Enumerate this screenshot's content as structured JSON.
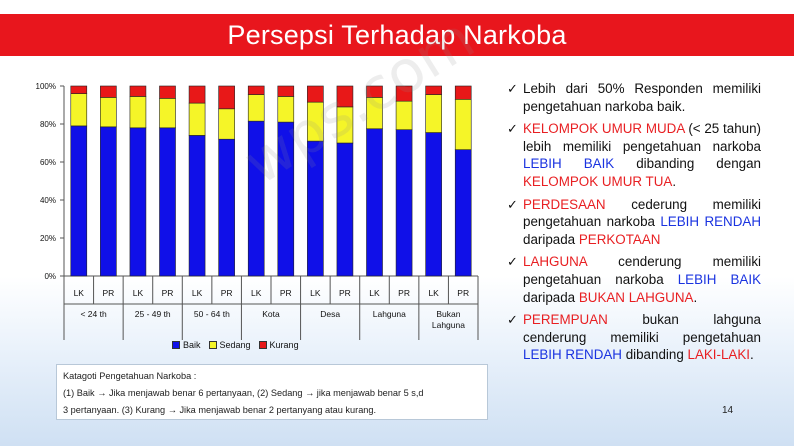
{
  "slide_title": "Persepsi Terhadap Narkoba",
  "watermark": "wps.com",
  "page_number": "14",
  "colors": {
    "baik": "#1010e8",
    "sedang": "#f5f528",
    "kurang": "#e81818",
    "title_bar": "#e8161d"
  },
  "chart_data": {
    "type": "bar",
    "stacked": true,
    "percent": true,
    "categories": [
      "LK",
      "PR",
      "LK",
      "PR",
      "LK",
      "PR",
      "LK",
      "PR",
      "LK",
      "PR",
      "LK",
      "PR",
      "LK",
      "PR"
    ],
    "groups": [
      "< 24 th",
      "25 - 49 th",
      "50 - 64 th",
      "Kota",
      "Desa",
      "Lahguna",
      "Bukan Lahguna"
    ],
    "series": [
      {
        "name": "Baik",
        "values": [
          79,
          78.5,
          78,
          78,
          74,
          72,
          81.5,
          81,
          71,
          70,
          77.5,
          77,
          75.5,
          66.5
        ]
      },
      {
        "name": "Sedang",
        "values": [
          17,
          15.5,
          16.5,
          15.5,
          17,
          16,
          14,
          13.5,
          20.5,
          19,
          16.5,
          15,
          20,
          26.5
        ]
      },
      {
        "name": "Kurang",
        "values": [
          4,
          6,
          5.5,
          6.5,
          9,
          12,
          4.5,
          5.5,
          8.5,
          11,
          6,
          8,
          4.5,
          7
        ]
      }
    ],
    "ylim": [
      0,
      100
    ],
    "yticks": [
      "0%",
      "20%",
      "40%",
      "60%",
      "80%",
      "100%"
    ],
    "legend_position": "bottom"
  },
  "note": {
    "line1": "Katagoti Pengetahuan Narkoba :",
    "line2": "(1) Baik → Jika menjawab benar 6 pertanyaan, (2) Sedang → jika menjawab benar 5 s,d",
    "line3": "3 pertanyaan. (3) Kurang → Jika menjawab benar 2 pertanyang atau kurang."
  },
  "bullets": [
    [
      {
        "t": "Lebih dari 50% Responden memiliki pengetahuan narkoba baik.",
        "c": ""
      }
    ],
    [
      {
        "t": "KELOMPOK UMUR MUDA",
        "c": "red"
      },
      {
        "t": " (< 25 tahun) lebih memiliki pengetahuan narkoba ",
        "c": ""
      },
      {
        "t": "LEBIH BAIK",
        "c": "blue"
      },
      {
        "t": " dibanding dengan ",
        "c": ""
      },
      {
        "t": "KELOMPOK UMUR TUA",
        "c": "red"
      },
      {
        "t": ".",
        "c": ""
      }
    ],
    [
      {
        "t": "PERDESAAN",
        "c": "red"
      },
      {
        "t": " cederung memiliki pengetahuan narkoba ",
        "c": ""
      },
      {
        "t": "LEBIH RENDAH",
        "c": "blue"
      },
      {
        "t": " daripada ",
        "c": ""
      },
      {
        "t": "PERKOTAAN",
        "c": "red"
      }
    ],
    [
      {
        "t": "LAHGUNA",
        "c": "red"
      },
      {
        "t": " cenderung memiliki pengetahuan narkoba ",
        "c": ""
      },
      {
        "t": "LEBIH BAIK",
        "c": "blue"
      },
      {
        "t": " daripada ",
        "c": ""
      },
      {
        "t": "BUKAN LAHGUNA",
        "c": "red"
      },
      {
        "t": ".",
        "c": ""
      }
    ],
    [
      {
        "t": "PEREMPUAN",
        "c": "red"
      },
      {
        "t": " bukan lahguna cenderung memiliki pengetahuan ",
        "c": ""
      },
      {
        "t": "LEBIH RENDAH",
        "c": "blue"
      },
      {
        "t": " dibanding ",
        "c": ""
      },
      {
        "t": "LAKI-LAKI",
        "c": "red"
      },
      {
        "t": ".",
        "c": ""
      }
    ]
  ]
}
